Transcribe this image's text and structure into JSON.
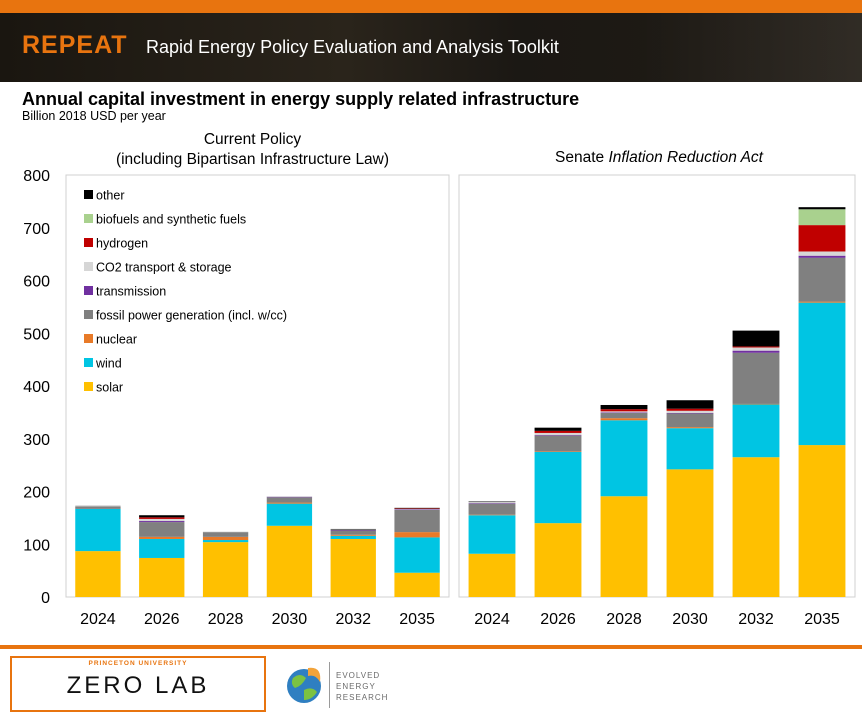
{
  "header": {
    "brand": "REPEAT",
    "subtitle": "Rapid Energy Policy Evaluation and Analysis Toolkit"
  },
  "title": "Annual capital investment in energy supply related infrastructure",
  "unit": "Billion 2018 USD per year",
  "footer": {
    "university": "PRINCETON UNIVERSITY",
    "lab": "ZERO LAB",
    "partner": "EVOLVED\nENERGY\nRESEARCH"
  },
  "colors": {
    "accent": "#e8740f",
    "solar": "#ffc000",
    "wind": "#00c5e3",
    "nuclear": "#e87a28",
    "fossil": "#808080",
    "transmission": "#7030a0",
    "co2": "#d6d6d6",
    "hydrogen": "#c00000",
    "biofuels": "#a9d18e",
    "other": "#000000"
  },
  "chart_data": {
    "type": "bar",
    "stacked": true,
    "ylim": [
      0,
      800
    ],
    "yticks": [
      "800",
      "700",
      "600",
      "500",
      "400",
      "300",
      "200",
      "100",
      "0"
    ],
    "legend_position": "top-left",
    "grid": false,
    "legend": [
      "other",
      "biofuels and synthetic fuels",
      "hydrogen",
      "CO2 transport & storage",
      "transmission",
      "fossil power generation (incl. w/cc)",
      "nuclear",
      "wind",
      "solar"
    ],
    "panels": [
      {
        "title_lines": [
          "Current Policy",
          "(including Bipartisan Infrastructure Law)"
        ],
        "categories": [
          "2024",
          "2026",
          "2028",
          "2030",
          "2032",
          "2035"
        ],
        "series": [
          {
            "name": "solar",
            "values": [
              87,
              74,
              104,
              135,
              110,
              46
            ]
          },
          {
            "name": "wind",
            "values": [
              80,
              36,
              4,
              42,
              6,
              67
            ]
          },
          {
            "name": "nuclear",
            "values": [
              0,
              4,
              6,
              2,
              2,
              10
            ]
          },
          {
            "name": "fossil power generation (incl. w/cc)",
            "values": [
              5,
              28,
              9,
              10,
              8,
              42
            ]
          },
          {
            "name": "transmission",
            "values": [
              0,
              2,
              0,
              1,
              1,
              1
            ]
          },
          {
            "name": "CO2 transport & storage",
            "values": [
              2,
              4,
              1,
              1,
              1,
              1
            ]
          },
          {
            "name": "hydrogen",
            "values": [
              0,
              3,
              0,
              0,
              0,
              1
            ]
          },
          {
            "name": "biofuels and synthetic fuels",
            "values": [
              0,
              0,
              0,
              0,
              0,
              0
            ]
          },
          {
            "name": "other",
            "values": [
              0,
              4,
              0,
              0,
              1,
              1
            ]
          }
        ]
      },
      {
        "title_plain": "Senate ",
        "title_italic": "Inflation Reduction Act",
        "categories": [
          "2024",
          "2026",
          "2028",
          "2030",
          "2032",
          "2035"
        ],
        "series": [
          {
            "name": "solar",
            "values": [
              82,
              140,
              191,
              242,
              265,
              288
            ]
          },
          {
            "name": "wind",
            "values": [
              73,
              135,
              144,
              78,
              100,
              270
            ]
          },
          {
            "name": "nuclear",
            "values": [
              1,
              1,
              4,
              2,
              1,
              2
            ]
          },
          {
            "name": "fossil power generation (incl. w/cc)",
            "values": [
              21,
              30,
              10,
              26,
              97,
              83
            ]
          },
          {
            "name": "transmission",
            "values": [
              1,
              1,
              1,
              1,
              4,
              4
            ]
          },
          {
            "name": "CO2 transport & storage",
            "values": [
              2,
              4,
              2,
              4,
              6,
              8
            ]
          },
          {
            "name": "hydrogen",
            "values": [
              0,
              4,
              4,
              4,
              2,
              50
            ]
          },
          {
            "name": "biofuels and synthetic fuels",
            "values": [
              0,
              0,
              0,
              0,
              0,
              30
            ]
          },
          {
            "name": "other",
            "values": [
              1,
              6,
              8,
              16,
              30,
              4
            ]
          }
        ]
      }
    ]
  }
}
